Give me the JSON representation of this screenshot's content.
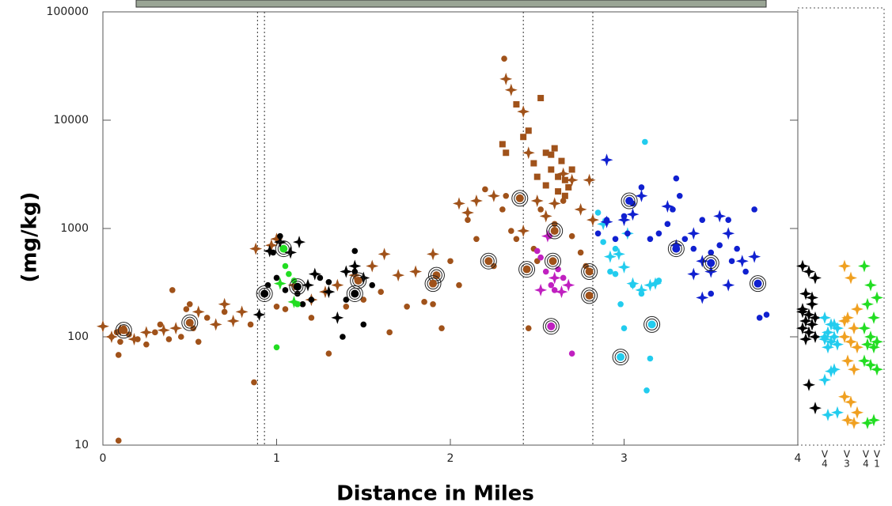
{
  "chart_data": [
    {
      "type": "scatter",
      "x_label": "Distance  in Miles",
      "y_label": "(mg/kg)",
      "log_y": true,
      "xlim": [
        0,
        4
      ],
      "xticks": [
        0,
        1,
        2,
        3,
        4
      ],
      "ylim": [
        10,
        100000
      ],
      "yticks": [
        10,
        100,
        1000,
        10000,
        100000
      ],
      "vlines": [
        0.89,
        0.93,
        2.42,
        2.82
      ],
      "series": [
        {
          "color": "#a0521a",
          "marker": "circle",
          "x": [
            0.05,
            0.08,
            0.1,
            0.12,
            0.15,
            0.2,
            0.25,
            0.3,
            0.33,
            0.38,
            0.4,
            0.45,
            0.48,
            0.5,
            0.52,
            0.55,
            0.6,
            0.7,
            0.85,
            0.09,
            0.09,
            0.87,
            1.0,
            1.05,
            1.15,
            1.2,
            1.3,
            1.4,
            1.5,
            1.6,
            1.65,
            1.75,
            1.85,
            1.9,
            1.95,
            2.0,
            2.05,
            2.1,
            2.15,
            2.2,
            2.25,
            2.3,
            2.32,
            2.35,
            2.38,
            2.31,
            2.45,
            2.48,
            2.5,
            2.52,
            2.6,
            2.65,
            2.7,
            2.75,
            2.78,
            2.8
          ],
          "values": [
            100,
            110,
            90,
            120,
            105,
            95,
            85,
            110,
            130,
            95,
            270,
            100,
            180,
            200,
            120,
            90,
            150,
            170,
            130,
            11,
            68,
            38,
            190,
            180,
            200,
            150,
            70,
            190,
            220,
            260,
            110,
            190,
            210,
            200,
            120,
            500,
            300,
            1200,
            800,
            2300,
            450,
            1500,
            2000,
            950,
            800,
            37000,
            120,
            650,
            500,
            1500,
            1100,
            1800,
            850,
            600,
            450,
            400
          ]
        },
        {
          "color": "#a0521a",
          "marker": "star",
          "x": [
            0.0,
            0.05,
            0.1,
            0.18,
            0.25,
            0.35,
            0.42,
            0.55,
            0.65,
            0.7,
            0.75,
            0.8,
            0.88,
            0.97,
            1.0,
            1.1,
            1.2,
            1.28,
            1.35,
            1.45,
            1.55,
            1.62,
            1.7,
            1.8,
            1.9,
            2.05,
            2.1,
            2.15,
            2.25,
            2.32,
            2.35,
            2.42,
            2.45,
            2.5,
            2.55,
            2.6,
            2.65,
            2.7,
            2.75,
            2.8,
            2.82,
            2.42
          ],
          "values": [
            125,
            100,
            115,
            95,
            110,
            115,
            120,
            170,
            130,
            200,
            140,
            170,
            650,
            700,
            800,
            300,
            220,
            260,
            300,
            370,
            450,
            580,
            370,
            400,
            580,
            1700,
            1400,
            1800,
            2000,
            24000,
            19000,
            12000,
            5000,
            1800,
            1300,
            1700,
            3200,
            2800,
            1500,
            2800,
            1200,
            950
          ]
        },
        {
          "color": "#a0521a",
          "marker": "square",
          "x": [
            2.3,
            2.32,
            2.38,
            2.42,
            2.45,
            2.48,
            2.5,
            2.52,
            2.55,
            2.58,
            2.6,
            2.62,
            2.64,
            2.66,
            2.68,
            2.7,
            2.58,
            2.55,
            2.62,
            2.66
          ],
          "values": [
            6000,
            5000,
            14000,
            7000,
            8000,
            4000,
            3000,
            16000,
            5000,
            3500,
            5500,
            3000,
            4200,
            2800,
            2400,
            3500,
            4800,
            2500,
            2200,
            2000
          ]
        },
        {
          "color": "#000000",
          "marker": "circle",
          "x": [
            0.95,
            0.98,
            1.0,
            1.02,
            1.05,
            1.12,
            1.15,
            1.2,
            1.25,
            1.3,
            1.38,
            1.45,
            1.5,
            1.55,
            1.45,
            1.4
          ],
          "values": [
            300,
            600,
            350,
            850,
            270,
            250,
            200,
            220,
            350,
            320,
            100,
            400,
            130,
            300,
            620,
            220
          ]
        },
        {
          "color": "#000000",
          "marker": "star",
          "x": [
            0.9,
            0.96,
            1.02,
            1.08,
            1.13,
            1.18,
            1.22,
            1.3,
            1.35,
            1.4,
            1.45,
            1.5
          ],
          "values": [
            160,
            620,
            750,
            600,
            750,
            300,
            380,
            260,
            150,
            400,
            450,
            350
          ]
        },
        {
          "color": "#22dd22",
          "marker": "circle",
          "x": [
            1.0,
            1.05,
            1.1,
            1.12,
            1.07
          ],
          "values": [
            80,
            450,
            330,
            200,
            380
          ]
        },
        {
          "color": "#22dd22",
          "marker": "star",
          "x": [
            1.02,
            1.1
          ],
          "values": [
            310,
            210
          ]
        },
        {
          "color": "#c020c0",
          "marker": "circle",
          "x": [
            2.5,
            2.55,
            2.58,
            2.6,
            2.62,
            2.65,
            2.52,
            2.7,
            2.57
          ],
          "values": [
            620,
            400,
            300,
            270,
            420,
            350,
            540,
            70,
            850
          ]
        },
        {
          "color": "#c020c0",
          "marker": "star",
          "x": [
            2.52,
            2.56,
            2.6,
            2.64,
            2.68
          ],
          "values": [
            270,
            850,
            350,
            260,
            300
          ]
        },
        {
          "color": "#22ccee",
          "marker": "circle",
          "x": [
            2.85,
            2.88,
            2.92,
            2.95,
            2.98,
            3.0,
            3.05,
            3.1,
            3.12,
            3.13,
            3.15,
            3.2,
            2.95
          ],
          "values": [
            1400,
            750,
            400,
            380,
            200,
            120,
            300,
            250,
            6300,
            32,
            63,
            330,
            650
          ]
        },
        {
          "color": "#22ccee",
          "marker": "star",
          "x": [
            2.88,
            2.92,
            2.97,
            3.0,
            3.05,
            3.1,
            3.15,
            3.18,
            3.02
          ],
          "values": [
            1100,
            550,
            580,
            440,
            310,
            270,
            300,
            310,
            900
          ]
        },
        {
          "color": "#1020d0",
          "marker": "circle",
          "x": [
            2.85,
            2.9,
            2.95,
            3.0,
            3.05,
            3.1,
            3.15,
            3.2,
            3.25,
            3.3,
            3.32,
            3.35,
            3.4,
            3.45,
            3.5,
            3.55,
            3.6,
            3.62,
            3.65,
            3.7,
            3.75,
            3.78,
            3.82,
            3.02,
            3.28,
            3.5
          ],
          "values": [
            900,
            1200,
            800,
            1300,
            1700,
            2400,
            800,
            900,
            1100,
            2900,
            2000,
            800,
            650,
            1200,
            600,
            700,
            1200,
            500,
            650,
            400,
            1500,
            150,
            160,
            900,
            1500,
            250
          ]
        },
        {
          "color": "#1020d0",
          "marker": "star",
          "x": [
            2.9,
            3.0,
            3.05,
            3.1,
            2.9,
            3.25,
            3.4,
            3.45,
            3.55,
            3.6,
            3.68,
            3.75,
            3.3,
            3.5,
            3.6,
            3.4,
            3.45
          ],
          "values": [
            1150,
            1200,
            1350,
            2000,
            4300,
            1600,
            900,
            500,
            1300,
            900,
            500,
            550,
            700,
            400,
            300,
            380,
            230
          ]
        },
        {
          "marker": "ringed",
          "x": [
            0.12,
            0.5,
            0.93,
            1.04,
            1.12,
            1.45,
            1.47,
            1.92,
            1.9,
            2.22,
            2.4,
            2.44,
            2.6,
            2.59,
            2.58,
            2.8,
            2.8,
            2.98,
            3.03,
            3.16,
            3.3,
            3.5,
            3.77
          ],
          "values": [
            115,
            135,
            250,
            650,
            290,
            250,
            330,
            370,
            310,
            500,
            1900,
            420,
            950,
            500,
            125,
            240,
            400,
            65,
            1800,
            130,
            650,
            480,
            310
          ],
          "colors": [
            "#a0521a",
            "#a0521a",
            "#000000",
            "#22dd22",
            "#000000",
            "#000000",
            "#a0521a",
            "#a0521a",
            "#a0521a",
            "#a0521a",
            "#a0521a",
            "#a0521a",
            "#a0521a",
            "#a0521a",
            "#c020c0",
            "#a0521a",
            "#a0521a",
            "#22ccee",
            "#1020d0",
            "#22ccee",
            "#1020d0",
            "#1020d0",
            "#1020d0"
          ]
        }
      ]
    },
    {
      "type": "strip",
      "log_y": true,
      "ylim": [
        10,
        100000
      ],
      "categories_top": [
        "V",
        "V",
        "V",
        "V"
      ],
      "categories": [
        "4",
        "3",
        "4",
        "1"
      ],
      "series": [
        {
          "color": "#000000",
          "marker": "star",
          "values": [
            450,
            400,
            350,
            250,
            200,
            180,
            160,
            150,
            140,
            130,
            120,
            110,
            100,
            95,
            230,
            170,
            36,
            22
          ]
        },
        {
          "color": "#22ccee",
          "marker": "star",
          "values": [
            150,
            130,
            120,
            110,
            100,
            95,
            90,
            85,
            80,
            50,
            40,
            48,
            20,
            19,
            130,
            100
          ]
        },
        {
          "color": "#f0a020",
          "marker": "star",
          "values": [
            450,
            350,
            180,
            150,
            120,
            100,
            90,
            80,
            60,
            50,
            28,
            25,
            20,
            17,
            16,
            140
          ]
        },
        {
          "color": "#22dd22",
          "marker": "star",
          "values": [
            450,
            300,
            230,
            200,
            150,
            120,
            100,
            90,
            85,
            80,
            60,
            55,
            50,
            16,
            17
          ]
        }
      ]
    }
  ]
}
